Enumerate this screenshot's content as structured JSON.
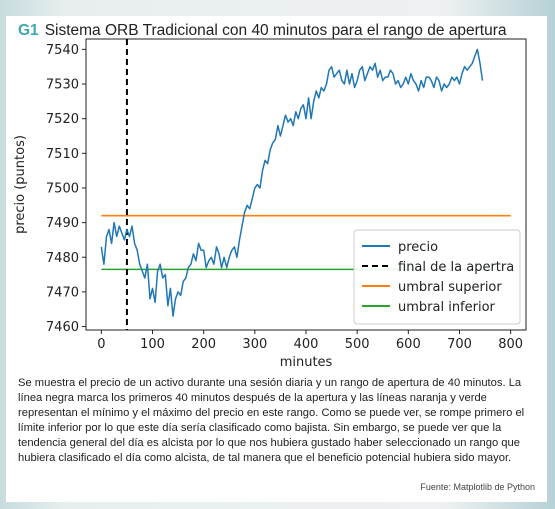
{
  "figure": {
    "tag": "G1",
    "title": "Sistema ORB Tradicional con 40 minutos para el rango de apertura",
    "caption": "Se muestra el precio de un activo durante una sesión diaria y un rango de apertura de 40 minutos. La línea negra marca los primeros 40 minutos después de la apertura y las líneas naranja y verde representan el mínimo y el máximo del precio en este rango. Como se puede ver, se rompe primero el límite inferior por lo que este día sería clasificado como bajista. Sin embargo, se puede ver que la tendencia general del día es alcista por lo que nos hubiera gustado haber seleccionado un rango que hubiera clasificado el día como alcista, de tal manera que el beneficio potencial hubiera sido mayor.",
    "source": "Fuente: Matplotlib de Python"
  },
  "chart_data": {
    "type": "line",
    "xlabel": "minutes",
    "ylabel": "precio (puntos)",
    "xlim": [
      -30,
      830
    ],
    "ylim": [
      7459,
      7543
    ],
    "x_ticks": [
      0,
      100,
      200,
      300,
      400,
      500,
      600,
      700,
      800
    ],
    "y_ticks": [
      7460,
      7470,
      7480,
      7490,
      7500,
      7510,
      7520,
      7530,
      7540
    ],
    "grid": false,
    "legend_position": "lower-right",
    "series": [
      {
        "name": "precio",
        "color": "#1f77b4",
        "style": "solid",
        "x": [
          0,
          5,
          10,
          15,
          20,
          25,
          30,
          35,
          40,
          45,
          50,
          55,
          60,
          65,
          70,
          75,
          80,
          85,
          90,
          95,
          100,
          105,
          110,
          115,
          120,
          125,
          130,
          135,
          140,
          145,
          150,
          155,
          160,
          165,
          170,
          175,
          180,
          185,
          190,
          195,
          200,
          205,
          210,
          215,
          220,
          225,
          230,
          235,
          240,
          245,
          250,
          255,
          260,
          265,
          270,
          275,
          280,
          285,
          290,
          295,
          300,
          305,
          310,
          315,
          320,
          325,
          330,
          335,
          340,
          345,
          350,
          355,
          360,
          365,
          370,
          375,
          380,
          385,
          390,
          395,
          400,
          405,
          410,
          415,
          420,
          425,
          430,
          435,
          440,
          445,
          450,
          455,
          460,
          465,
          470,
          475,
          480,
          485,
          490,
          495,
          500,
          505,
          510,
          515,
          520,
          525,
          530,
          535,
          540,
          545,
          550,
          555,
          560,
          565,
          570,
          575,
          580,
          585,
          590,
          595,
          600,
          605,
          610,
          615,
          620,
          625,
          630,
          635,
          640,
          645,
          650,
          655,
          660,
          665,
          670,
          675,
          680,
          685,
          690,
          695,
          700,
          705,
          710,
          715,
          720,
          725,
          730,
          735,
          740,
          745
        ],
        "values": [
          7483,
          7478,
          7486,
          7488,
          7484,
          7490,
          7486,
          7489,
          7487,
          7485,
          7488,
          7486,
          7489,
          7484,
          7482,
          7478,
          7476,
          7474,
          7478,
          7468,
          7471,
          7467,
          7476,
          7478,
          7474,
          7475,
          7466,
          7471,
          7463,
          7468,
          7470,
          7469,
          7473,
          7474,
          7477,
          7478,
          7481,
          7479,
          7484,
          7482,
          7482,
          7477,
          7479,
          7480,
          7478,
          7483,
          7481,
          7477,
          7480,
          7477,
          7480,
          7482,
          7483,
          7480,
          7485,
          7489,
          7493,
          7495,
          7494,
          7497,
          7500,
          7501,
          7500,
          7505,
          7508,
          7507,
          7511,
          7513,
          7514,
          7518,
          7515,
          7518,
          7521,
          7519,
          7520,
          7518,
          7522,
          7520,
          7523,
          7524,
          7520,
          7526,
          7520,
          7525,
          7528,
          7526,
          7529,
          7528,
          7530,
          7534,
          7535,
          7532,
          7533,
          7534,
          7531,
          7530,
          7534,
          7530,
          7533,
          7529,
          7531,
          7534,
          7535,
          7531,
          7533,
          7535,
          7534,
          7536,
          7532,
          7534,
          7531,
          7532,
          7532,
          7534,
          7533,
          7530,
          7531,
          7529,
          7530,
          7532,
          7530,
          7533,
          7531,
          7530,
          7528,
          7531,
          7529,
          7532,
          7532,
          7531,
          7529,
          7532,
          7531,
          7528,
          7530,
          7529,
          7530,
          7532,
          7531,
          7532,
          7530,
          7533,
          7535,
          7534,
          7535,
          7536,
          7538,
          7540,
          7536,
          7531
        ]
      },
      {
        "name": "final de la apertra",
        "color": "#000000",
        "style": "dashed",
        "vertical_x": 50
      },
      {
        "name": "umbral superior",
        "color": "#ff7f0e",
        "style": "solid",
        "y": 7492,
        "x_range": [
          0,
          800
        ]
      },
      {
        "name": "umbral inferior",
        "color": "#2ca02c",
        "style": "solid",
        "y": 7476.5,
        "x_range": [
          0,
          800
        ]
      }
    ]
  }
}
